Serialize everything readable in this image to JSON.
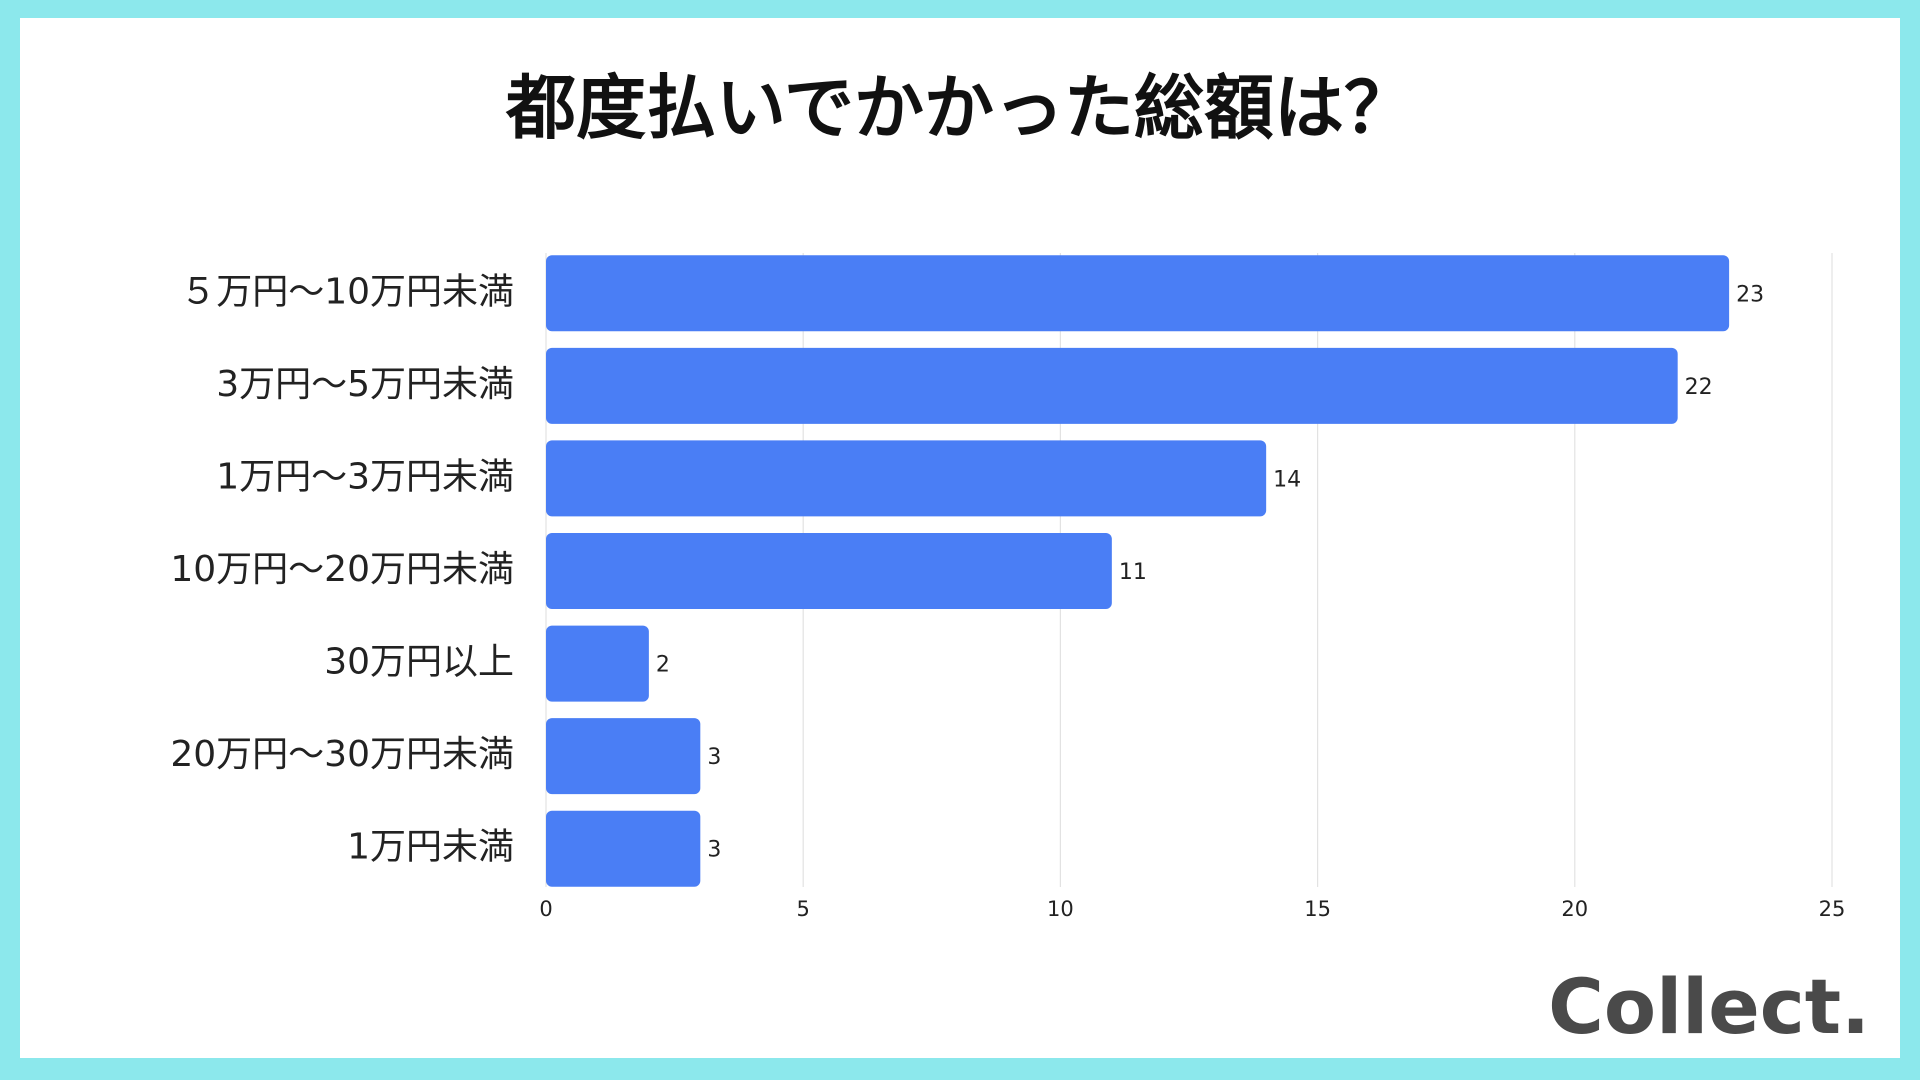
{
  "chart_data": {
    "type": "bar",
    "orientation": "horizontal",
    "title": "都度払いでかかった総額は？",
    "categories": [
      "５万円〜10万円未満",
      "3万円〜5万円未満",
      "1万円〜3万円未満",
      "10万円〜20万円未満",
      "30万円以上",
      "20万円〜30万円未満",
      "1万円未満"
    ],
    "values": [
      23,
      22,
      14,
      11,
      2,
      3,
      3
    ],
    "color": "#4a7ef5",
    "xlim": [
      0,
      25
    ],
    "xticks": [
      0,
      5,
      10,
      15,
      20,
      25
    ],
    "grid": true
  },
  "logo": "Collect."
}
